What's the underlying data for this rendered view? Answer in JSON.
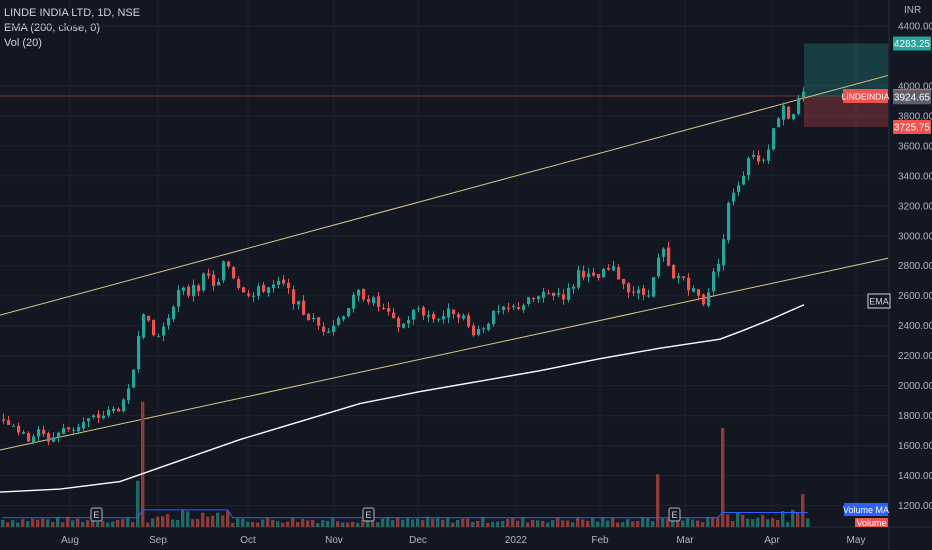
{
  "header": {
    "symbol_line": "LINDE INDIA LTD, 1D, NSE",
    "ema_line": "EMA (200, close, 0)",
    "vol_line": "Vol (20)"
  },
  "chart_data": {
    "type": "candlestick",
    "currency": "INR",
    "y_ticks": [
      "1200.00",
      "1400.00",
      "1600.00",
      "1800.00",
      "2000.00",
      "2200.00",
      "2400.00",
      "2600.00",
      "2800.00",
      "3000.00",
      "3200.00",
      "3400.00",
      "3600.00",
      "3800.00",
      "4000.00",
      "4400.00"
    ],
    "y_range": [
      1130,
      4460
    ],
    "x_labels": [
      "Aug",
      "Sep",
      "Oct",
      "Nov",
      "Dec",
      "2022",
      "Feb",
      "Mar",
      "Apr",
      "May"
    ],
    "price_anchor_points": [
      {
        "x": 0,
        "y": 1780
      },
      {
        "x": 12,
        "y": 1750
      },
      {
        "x": 24,
        "y": 1640
      },
      {
        "x": 36,
        "y": 1690
      },
      {
        "x": 48,
        "y": 1640
      },
      {
        "x": 60,
        "y": 1700
      },
      {
        "x": 72,
        "y": 1720
      },
      {
        "x": 84,
        "y": 1760
      },
      {
        "x": 96,
        "y": 1790
      },
      {
        "x": 108,
        "y": 1820
      },
      {
        "x": 118,
        "y": 1860
      },
      {
        "x": 124,
        "y": 1880
      },
      {
        "x": 130,
        "y": 2020
      },
      {
        "x": 136,
        "y": 2300
      },
      {
        "x": 140,
        "y": 2560
      },
      {
        "x": 144,
        "y": 2460
      },
      {
        "x": 150,
        "y": 2340
      },
      {
        "x": 156,
        "y": 2320
      },
      {
        "x": 162,
        "y": 2390
      },
      {
        "x": 168,
        "y": 2480
      },
      {
        "x": 174,
        "y": 2600
      },
      {
        "x": 180,
        "y": 2640
      },
      {
        "x": 186,
        "y": 2600
      },
      {
        "x": 192,
        "y": 2690
      },
      {
        "x": 198,
        "y": 2660
      },
      {
        "x": 204,
        "y": 2740
      },
      {
        "x": 210,
        "y": 2700
      },
      {
        "x": 216,
        "y": 2640
      },
      {
        "x": 220,
        "y": 2780
      },
      {
        "x": 224,
        "y": 2840
      },
      {
        "x": 230,
        "y": 2760
      },
      {
        "x": 236,
        "y": 2680
      },
      {
        "x": 244,
        "y": 2640
      },
      {
        "x": 252,
        "y": 2600
      },
      {
        "x": 260,
        "y": 2650
      },
      {
        "x": 270,
        "y": 2660
      },
      {
        "x": 280,
        "y": 2680
      },
      {
        "x": 290,
        "y": 2600
      },
      {
        "x": 300,
        "y": 2500
      },
      {
        "x": 310,
        "y": 2440
      },
      {
        "x": 320,
        "y": 2380
      },
      {
        "x": 330,
        "y": 2400
      },
      {
        "x": 340,
        "y": 2470
      },
      {
        "x": 350,
        "y": 2560
      },
      {
        "x": 358,
        "y": 2620
      },
      {
        "x": 366,
        "y": 2590
      },
      {
        "x": 374,
        "y": 2550
      },
      {
        "x": 384,
        "y": 2490
      },
      {
        "x": 392,
        "y": 2420
      },
      {
        "x": 400,
        "y": 2390
      },
      {
        "x": 408,
        "y": 2460
      },
      {
        "x": 416,
        "y": 2520
      },
      {
        "x": 424,
        "y": 2480
      },
      {
        "x": 432,
        "y": 2450
      },
      {
        "x": 442,
        "y": 2470
      },
      {
        "x": 452,
        "y": 2500
      },
      {
        "x": 460,
        "y": 2480
      },
      {
        "x": 466,
        "y": 2390
      },
      {
        "x": 474,
        "y": 2360
      },
      {
        "x": 482,
        "y": 2400
      },
      {
        "x": 490,
        "y": 2460
      },
      {
        "x": 500,
        "y": 2490
      },
      {
        "x": 510,
        "y": 2510
      },
      {
        "x": 520,
        "y": 2540
      },
      {
        "x": 530,
        "y": 2570
      },
      {
        "x": 540,
        "y": 2590
      },
      {
        "x": 548,
        "y": 2610
      },
      {
        "x": 556,
        "y": 2620
      },
      {
        "x": 564,
        "y": 2600
      },
      {
        "x": 572,
        "y": 2680
      },
      {
        "x": 578,
        "y": 2780
      },
      {
        "x": 586,
        "y": 2730
      },
      {
        "x": 594,
        "y": 2700
      },
      {
        "x": 602,
        "y": 2750
      },
      {
        "x": 610,
        "y": 2780
      },
      {
        "x": 618,
        "y": 2720
      },
      {
        "x": 626,
        "y": 2660
      },
      {
        "x": 634,
        "y": 2620
      },
      {
        "x": 642,
        "y": 2610
      },
      {
        "x": 648,
        "y": 2640
      },
      {
        "x": 654,
        "y": 2740
      },
      {
        "x": 660,
        "y": 2930
      },
      {
        "x": 666,
        "y": 2800
      },
      {
        "x": 672,
        "y": 2700
      },
      {
        "x": 680,
        "y": 2740
      },
      {
        "x": 688,
        "y": 2660
      },
      {
        "x": 696,
        "y": 2600
      },
      {
        "x": 702,
        "y": 2560
      },
      {
        "x": 708,
        "y": 2660
      },
      {
        "x": 714,
        "y": 2780
      },
      {
        "x": 720,
        "y": 2900
      },
      {
        "x": 724,
        "y": 3060
      },
      {
        "x": 728,
        "y": 3250
      },
      {
        "x": 734,
        "y": 3330
      },
      {
        "x": 740,
        "y": 3380
      },
      {
        "x": 746,
        "y": 3520
      },
      {
        "x": 752,
        "y": 3560
      },
      {
        "x": 758,
        "y": 3480
      },
      {
        "x": 764,
        "y": 3560
      },
      {
        "x": 770,
        "y": 3660
      },
      {
        "x": 776,
        "y": 3790
      },
      {
        "x": 782,
        "y": 3880
      },
      {
        "x": 788,
        "y": 3780
      },
      {
        "x": 794,
        "y": 3860
      },
      {
        "x": 800,
        "y": 3930
      },
      {
        "x": 806,
        "y": 3933
      }
    ],
    "ema_points": [
      {
        "x": 0,
        "y": 1290
      },
      {
        "x": 60,
        "y": 1310
      },
      {
        "x": 120,
        "y": 1360
      },
      {
        "x": 180,
        "y": 1500
      },
      {
        "x": 240,
        "y": 1640
      },
      {
        "x": 300,
        "y": 1760
      },
      {
        "x": 360,
        "y": 1880
      },
      {
        "x": 420,
        "y": 1960
      },
      {
        "x": 480,
        "y": 2030
      },
      {
        "x": 540,
        "y": 2100
      },
      {
        "x": 600,
        "y": 2180
      },
      {
        "x": 660,
        "y": 2250
      },
      {
        "x": 700,
        "y": 2290
      },
      {
        "x": 720,
        "y": 2310
      },
      {
        "x": 740,
        "y": 2360
      },
      {
        "x": 770,
        "y": 2440
      },
      {
        "x": 804,
        "y": 2540
      }
    ],
    "upper_channel": {
      "x1": 0,
      "y1": 2470,
      "x2": 888,
      "y2": 4070
    },
    "lower_channel": {
      "x1": 0,
      "y1": 1570,
      "x2": 888,
      "y2": 2850
    },
    "current_price_line": 3932.75,
    "position_tool": {
      "target": 4283.25,
      "entry": 3924.65,
      "stop": 3725.75,
      "x_start": 804,
      "x_end": 888
    },
    "volume_spikes": [
      {
        "x": 136,
        "h": 0.35
      },
      {
        "x": 142,
        "h": 0.95
      },
      {
        "x": 722,
        "h": 0.75
      },
      {
        "x": 658,
        "h": 0.4
      },
      {
        "x": 800,
        "h": 0.25
      }
    ],
    "earnings_markers_x": [
      96,
      368,
      674
    ],
    "earnings_label": "E",
    "last_price_label": "LINDEINDIA",
    "last_price": "3932.75",
    "target_label": "4283.25",
    "entry_label": "3924.65",
    "stop_label": "3725.75",
    "ema_axis_label": "EMA",
    "volume_ma_label": "Volume MA",
    "volume_label": "Volume",
    "colors": {
      "up": "#26a69a",
      "down": "#ef5350",
      "grid": "#1e222d",
      "channel": "#d8c98a",
      "ema": "#ffffff",
      "vol_ma": "#2962ff"
    }
  }
}
